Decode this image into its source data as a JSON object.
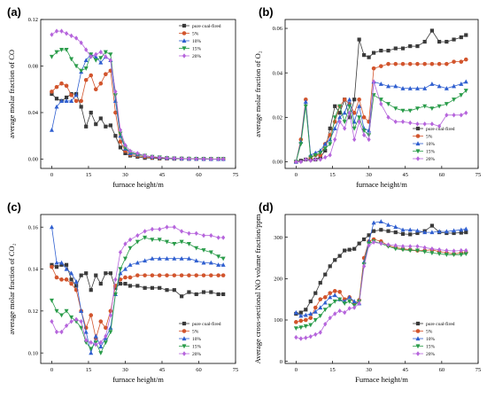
{
  "chart_data": [
    {
      "panel": "(a)",
      "type": "line",
      "xlabel": "furnace height/m",
      "ylabel": "average molar fraction of CO",
      "xlim": [
        -4.5,
        75
      ],
      "ylim": [
        -0.008,
        0.12
      ],
      "xticks": [
        0,
        15,
        30,
        45,
        60,
        75
      ],
      "yticks": [
        0.0,
        0.04,
        0.08,
        0.12
      ],
      "ytick_labels": [
        "0.00",
        "0.04",
        "0.08",
        "0.12"
      ],
      "legend_position": "top-right",
      "x": [
        0,
        2,
        4,
        6,
        8,
        10,
        12,
        14,
        16,
        18,
        20,
        22,
        24,
        26,
        28,
        30,
        32,
        35,
        38,
        41,
        44,
        47,
        50,
        53,
        56,
        59,
        62,
        65,
        68,
        70
      ],
      "series": [
        {
          "name": "pure coal-fired",
          "color": "#3a3a3a",
          "marker": "square",
          "values": [
            0.056,
            0.052,
            0.05,
            0.053,
            0.056,
            0.056,
            0.045,
            0.028,
            0.04,
            0.03,
            0.035,
            0.028,
            0.029,
            0.02,
            0.01,
            0.005,
            0.003,
            0.002,
            0.001,
            0.001,
            0.0005,
            0.0005,
            0.0003,
            0.0003,
            0.0002,
            0.0002,
            0.0001,
            0.0001,
            0.0001,
            0.0001
          ]
        },
        {
          "name": "5%",
          "color": "#d2552d",
          "marker": "circle",
          "values": [
            0.058,
            0.062,
            0.065,
            0.063,
            0.055,
            0.05,
            0.05,
            0.068,
            0.072,
            0.06,
            0.065,
            0.073,
            0.076,
            0.04,
            0.015,
            0.007,
            0.004,
            0.003,
            0.002,
            0.0015,
            0.001,
            0.0008,
            0.0005,
            0.0004,
            0.0003,
            0.0002,
            0.0002,
            0.0001,
            0.0001,
            0.0001
          ]
        },
        {
          "name": "10%",
          "color": "#2f5fd0",
          "marker": "triangle-up",
          "values": [
            0.025,
            0.045,
            0.05,
            0.05,
            0.05,
            0.055,
            0.075,
            0.085,
            0.09,
            0.088,
            0.083,
            0.088,
            0.085,
            0.05,
            0.02,
            0.009,
            0.005,
            0.004,
            0.003,
            0.002,
            0.0015,
            0.001,
            0.0007,
            0.0005,
            0.0004,
            0.0003,
            0.0002,
            0.0001,
            0.0001,
            0.0001
          ]
        },
        {
          "name": "15%",
          "color": "#2a9c4a",
          "marker": "triangle-down",
          "values": [
            0.088,
            0.092,
            0.094,
            0.094,
            0.086,
            0.08,
            0.076,
            0.078,
            0.09,
            0.085,
            0.087,
            0.092,
            0.09,
            0.055,
            0.022,
            0.01,
            0.006,
            0.004,
            0.003,
            0.002,
            0.0015,
            0.001,
            0.0007,
            0.0005,
            0.0004,
            0.0003,
            0.0002,
            0.0001,
            0.0001,
            0.0001
          ]
        },
        {
          "name": "20%",
          "color": "#b665dc",
          "marker": "diamond",
          "values": [
            0.107,
            0.11,
            0.11,
            0.108,
            0.106,
            0.104,
            0.1,
            0.094,
            0.088,
            0.09,
            0.092,
            0.088,
            0.085,
            0.058,
            0.025,
            0.012,
            0.007,
            0.005,
            0.003,
            0.002,
            0.0015,
            0.001,
            0.0008,
            0.0005,
            0.0004,
            0.0003,
            0.0002,
            0.0001,
            0.0001,
            0.0001
          ]
        }
      ]
    },
    {
      "panel": "(b)",
      "type": "line",
      "xlabel": "furnace height/m",
      "ylabel": "average molar fraction of O₂",
      "xlim": [
        -4.5,
        75
      ],
      "ylim": [
        -0.003,
        0.064
      ],
      "xticks": [
        0,
        15,
        30,
        45,
        60,
        75
      ],
      "yticks": [
        0.0,
        0.02,
        0.04,
        0.06
      ],
      "ytick_labels": [
        "0.00",
        "0.02",
        "0.04",
        "0.06"
      ],
      "legend_position": "bottom-right",
      "x": [
        0,
        2,
        4,
        6,
        8,
        10,
        12,
        14,
        16,
        18,
        20,
        22,
        24,
        26,
        28,
        30,
        32,
        35,
        38,
        41,
        44,
        47,
        50,
        53,
        56,
        59,
        62,
        65,
        68,
        70
      ],
      "series": [
        {
          "name": "pure coal-fired",
          "color": "#3a3a3a",
          "marker": "square",
          "values": [
            0.0,
            0.0005,
            0.001,
            0.001,
            0.001,
            0.002,
            0.005,
            0.015,
            0.025,
            0.022,
            0.028,
            0.02,
            0.028,
            0.055,
            0.048,
            0.047,
            0.049,
            0.05,
            0.05,
            0.051,
            0.051,
            0.052,
            0.052,
            0.054,
            0.059,
            0.054,
            0.054,
            0.055,
            0.056,
            0.057
          ]
        },
        {
          "name": "5%",
          "color": "#d2552d",
          "marker": "circle",
          "values": [
            0.0,
            0.01,
            0.028,
            0.002,
            0.003,
            0.003,
            0.008,
            0.012,
            0.018,
            0.025,
            0.028,
            0.026,
            0.022,
            0.028,
            0.02,
            0.018,
            0.042,
            0.043,
            0.044,
            0.044,
            0.044,
            0.044,
            0.044,
            0.044,
            0.044,
            0.044,
            0.044,
            0.045,
            0.045,
            0.046
          ]
        },
        {
          "name": "10%",
          "color": "#2f5fd0",
          "marker": "triangle-up",
          "values": [
            0.0,
            0.009,
            0.027,
            0.003,
            0.004,
            0.005,
            0.008,
            0.01,
            0.015,
            0.02,
            0.022,
            0.028,
            0.018,
            0.025,
            0.015,
            0.014,
            0.036,
            0.035,
            0.034,
            0.034,
            0.033,
            0.033,
            0.033,
            0.033,
            0.035,
            0.034,
            0.033,
            0.034,
            0.035,
            0.036
          ]
        },
        {
          "name": "15%",
          "color": "#2a9c4a",
          "marker": "triangle-down",
          "values": [
            0.0,
            0.008,
            0.025,
            0.002,
            0.003,
            0.004,
            0.006,
            0.008,
            0.02,
            0.025,
            0.018,
            0.025,
            0.015,
            0.02,
            0.014,
            0.012,
            0.03,
            0.028,
            0.026,
            0.024,
            0.023,
            0.023,
            0.024,
            0.025,
            0.024,
            0.025,
            0.026,
            0.028,
            0.03,
            0.032
          ]
        },
        {
          "name": "20%",
          "color": "#b665dc",
          "marker": "diamond",
          "values": [
            0.0,
            0.0,
            0.001,
            0.0005,
            0.001,
            0.001,
            0.002,
            0.003,
            0.01,
            0.018,
            0.015,
            0.022,
            0.01,
            0.018,
            0.012,
            0.01,
            0.036,
            0.026,
            0.02,
            0.018,
            0.018,
            0.0175,
            0.017,
            0.017,
            0.017,
            0.016,
            0.021,
            0.021,
            0.021,
            0.022
          ]
        }
      ]
    },
    {
      "panel": "(c)",
      "type": "line",
      "xlabel": "furnace height/m",
      "ylabel": "average molar fraction of CO₂",
      "xlim": [
        -4.5,
        75
      ],
      "ylim": [
        0.095,
        0.166
      ],
      "xticks": [
        0,
        15,
        30,
        45,
        60,
        75
      ],
      "yticks": [
        0.1,
        0.12,
        0.14,
        0.16
      ],
      "ytick_labels": [
        "0.10",
        "0.12",
        "0.14",
        "0.16"
      ],
      "legend_position": "bottom-right",
      "x": [
        0,
        2,
        4,
        6,
        8,
        10,
        12,
        14,
        16,
        18,
        20,
        22,
        24,
        26,
        28,
        30,
        32,
        35,
        38,
        41,
        44,
        47,
        50,
        53,
        56,
        59,
        62,
        65,
        68,
        70
      ],
      "series": [
        {
          "name": "pure coal-fired",
          "color": "#3a3a3a",
          "marker": "square",
          "values": [
            0.142,
            0.141,
            0.142,
            0.142,
            0.135,
            0.132,
            0.137,
            0.138,
            0.13,
            0.137,
            0.133,
            0.138,
            0.138,
            0.131,
            0.133,
            0.133,
            0.132,
            0.132,
            0.131,
            0.131,
            0.131,
            0.13,
            0.13,
            0.127,
            0.129,
            0.128,
            0.129,
            0.129,
            0.128,
            0.128
          ]
        },
        {
          "name": "5%",
          "color": "#d2552d",
          "marker": "circle",
          "values": [
            0.141,
            0.136,
            0.135,
            0.135,
            0.133,
            0.13,
            0.12,
            0.112,
            0.118,
            0.107,
            0.115,
            0.112,
            0.12,
            0.132,
            0.135,
            0.136,
            0.136,
            0.137,
            0.137,
            0.137,
            0.137,
            0.137,
            0.137,
            0.137,
            0.137,
            0.137,
            0.137,
            0.137,
            0.137,
            0.137
          ]
        },
        {
          "name": "10%",
          "color": "#2f5fd0",
          "marker": "triangle-up",
          "values": [
            0.16,
            0.143,
            0.143,
            0.14,
            0.138,
            0.134,
            0.12,
            0.11,
            0.1,
            0.108,
            0.103,
            0.107,
            0.112,
            0.128,
            0.138,
            0.14,
            0.142,
            0.143,
            0.144,
            0.145,
            0.145,
            0.145,
            0.145,
            0.145,
            0.145,
            0.144,
            0.143,
            0.143,
            0.142,
            0.142
          ]
        },
        {
          "name": "15%",
          "color": "#2a9c4a",
          "marker": "triangle-down",
          "values": [
            0.125,
            0.12,
            0.118,
            0.12,
            0.117,
            0.115,
            0.112,
            0.105,
            0.102,
            0.105,
            0.1,
            0.105,
            0.11,
            0.128,
            0.14,
            0.145,
            0.15,
            0.153,
            0.155,
            0.154,
            0.154,
            0.153,
            0.152,
            0.153,
            0.152,
            0.15,
            0.149,
            0.148,
            0.146,
            0.145
          ]
        },
        {
          "name": "20%",
          "color": "#b665dc",
          "marker": "diamond",
          "values": [
            0.115,
            0.11,
            0.11,
            0.113,
            0.115,
            0.116,
            0.115,
            0.106,
            0.105,
            0.104,
            0.105,
            0.108,
            0.118,
            0.135,
            0.148,
            0.152,
            0.154,
            0.156,
            0.158,
            0.159,
            0.159,
            0.16,
            0.16,
            0.158,
            0.157,
            0.157,
            0.156,
            0.156,
            0.155,
            0.155
          ]
        }
      ]
    },
    {
      "panel": "(d)",
      "type": "line",
      "xlabel": "Furnace height/m",
      "ylabel": "Average cross-sectional NO volume fraction/ppm",
      "xlim": [
        -4.5,
        75
      ],
      "ylim": [
        -5,
        355
      ],
      "xticks": [
        0,
        15,
        30,
        45,
        60,
        75
      ],
      "yticks": [
        0,
        100,
        200,
        300
      ],
      "ytick_labels": [
        "0",
        "100",
        "200",
        "300"
      ],
      "legend_position": "bottom-right",
      "x": [
        0,
        2,
        4,
        6,
        8,
        10,
        12,
        14,
        16,
        18,
        20,
        22,
        24,
        26,
        28,
        30,
        32,
        35,
        38,
        41,
        44,
        47,
        50,
        53,
        56,
        59,
        62,
        65,
        68,
        70
      ],
      "series": [
        {
          "name": "pure coal-fired",
          "color": "#3a3a3a",
          "marker": "square",
          "values": [
            115,
            118,
            125,
            145,
            165,
            190,
            210,
            230,
            245,
            255,
            268,
            270,
            272,
            285,
            295,
            305,
            315,
            318,
            315,
            312,
            308,
            307,
            310,
            315,
            328,
            312,
            310,
            310,
            311,
            312
          ]
        },
        {
          "name": "5%",
          "color": "#d2552d",
          "marker": "circle",
          "values": [
            95,
            98,
            100,
            105,
            130,
            150,
            155,
            165,
            170,
            168,
            150,
            155,
            140,
            148,
            250,
            290,
            295,
            290,
            280,
            275,
            272,
            270,
            268,
            268,
            270,
            265,
            262,
            260,
            262,
            263
          ]
        },
        {
          "name": "10%",
          "color": "#2f5fd0",
          "marker": "triangle-up",
          "values": [
            118,
            110,
            112,
            115,
            120,
            130,
            142,
            155,
            160,
            150,
            145,
            155,
            145,
            140,
            240,
            290,
            335,
            338,
            330,
            325,
            318,
            318,
            316,
            312,
            312,
            314,
            314,
            316,
            318,
            320
          ]
        },
        {
          "name": "15%",
          "color": "#2a9c4a",
          "marker": "triangle-down",
          "values": [
            80,
            82,
            85,
            88,
            100,
            110,
            125,
            135,
            145,
            150,
            140,
            145,
            135,
            145,
            235,
            285,
            290,
            285,
            278,
            272,
            270,
            268,
            268,
            265,
            262,
            260,
            258,
            258,
            258,
            260
          ]
        },
        {
          "name": "20%",
          "color": "#b665dc",
          "marker": "diamond",
          "values": [
            58,
            55,
            57,
            60,
            65,
            70,
            90,
            105,
            115,
            122,
            118,
            128,
            130,
            140,
            230,
            280,
            288,
            285,
            282,
            280,
            278,
            278,
            278,
            275,
            272,
            270,
            268,
            267,
            268,
            268
          ]
        }
      ]
    }
  ]
}
